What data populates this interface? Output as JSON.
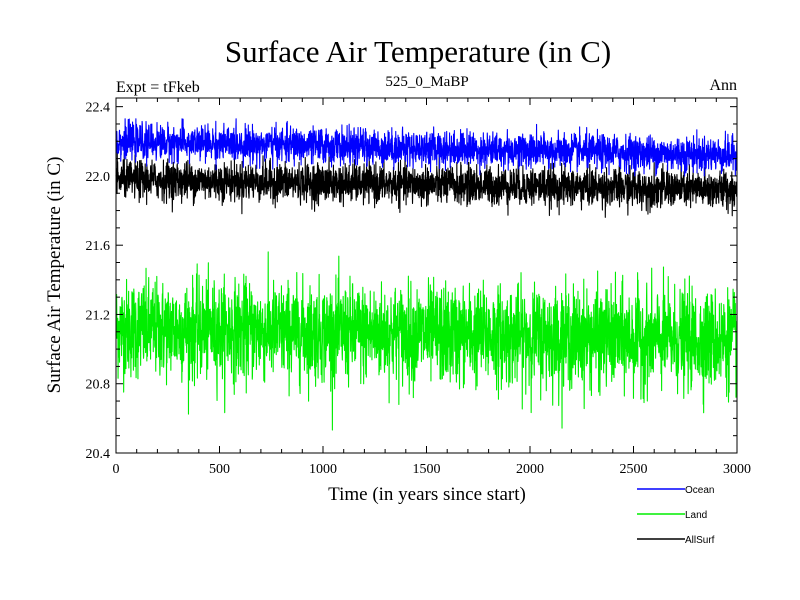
{
  "chart_data": {
    "type": "line",
    "title": "Surface Air Temperature (in C)",
    "subtitle_left": "Expt = tFkeb",
    "subtitle_center": "525_0_MaBP",
    "subtitle_right": "Ann",
    "xlabel": "Time (in years since start)",
    "ylabel": "Surface Air Temperature (in C)",
    "xlim": [
      0,
      3000
    ],
    "ylim": [
      20.4,
      22.45
    ],
    "x_ticks": [
      0,
      500,
      1000,
      1500,
      2000,
      2500,
      3000
    ],
    "x_tick_labels": [
      "0",
      "500",
      "1000",
      "1500",
      "2000",
      "2500",
      "3000"
    ],
    "y_ticks": [
      20.4,
      20.8,
      21.2,
      21.6,
      22.0,
      22.4
    ],
    "y_tick_labels": [
      "20.4",
      "20.8",
      "21.2",
      "21.6",
      "22.0",
      "22.4"
    ],
    "legend_position": "bottom-right",
    "grid": false,
    "series": [
      {
        "name": "Ocean",
        "color": "#0000ff",
        "mean_start": 22.2,
        "mean_end": 22.12,
        "noise_sd": 0.05,
        "min": 22.0,
        "max": 22.33
      },
      {
        "name": "Land",
        "color": "#00ee00",
        "mean_start": 21.12,
        "mean_end": 21.05,
        "noise_sd": 0.14,
        "min": 20.5,
        "max": 21.67
      },
      {
        "name": "AllSurf",
        "color": "#000000",
        "mean_start": 21.98,
        "mean_end": 21.92,
        "noise_sd": 0.055,
        "min": 21.74,
        "max": 22.14
      }
    ],
    "n_points": 3000
  }
}
